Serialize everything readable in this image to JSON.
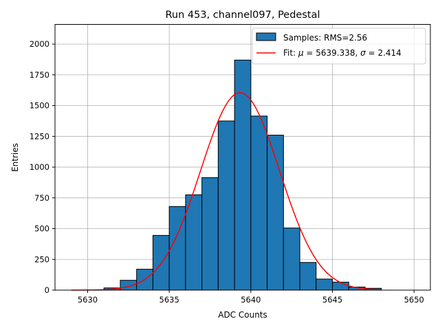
{
  "chart_data": {
    "type": "bar",
    "title": "Run 453, channel097, Pedestal",
    "xlabel": "ADC Counts",
    "ylabel": "Entries",
    "xlim": [
      5628,
      5651
    ],
    "ylim": [
      0,
      2160
    ],
    "xticks": [
      5630,
      5635,
      5640,
      5645,
      5650
    ],
    "yticks": [
      0,
      250,
      500,
      750,
      1000,
      1250,
      1500,
      1750,
      2000
    ],
    "grid": true,
    "legend_position": "top-right",
    "histogram": {
      "name": "Samples: RMS=2.56",
      "color": "#1f77b4",
      "bin_width": 1,
      "bins": [
        {
          "left": 5631,
          "value": 18
        },
        {
          "left": 5632,
          "value": 80
        },
        {
          "left": 5633,
          "value": 170
        },
        {
          "left": 5634,
          "value": 445
        },
        {
          "left": 5635,
          "value": 680
        },
        {
          "left": 5636,
          "value": 775
        },
        {
          "left": 5637,
          "value": 915
        },
        {
          "left": 5638,
          "value": 1375
        },
        {
          "left": 5639,
          "value": 1870
        },
        {
          "left": 5640,
          "value": 1415
        },
        {
          "left": 5641,
          "value": 1260
        },
        {
          "left": 5642,
          "value": 505
        },
        {
          "left": 5643,
          "value": 225
        },
        {
          "left": 5644,
          "value": 90
        },
        {
          "left": 5645,
          "value": 65
        },
        {
          "left": 5646,
          "value": 25
        },
        {
          "left": 5647,
          "value": 15
        }
      ]
    },
    "fit": {
      "name_prefix": "Fit: ",
      "mu_symbol": "μ",
      "mu_text": " = 5639.338, ",
      "sigma_symbol": "σ",
      "sigma_text": " = 2.414",
      "color": "#ff0000",
      "mu": 5639.338,
      "sigma": 2.414,
      "peak": 1605,
      "x_range": [
        5629,
        5648
      ]
    }
  }
}
